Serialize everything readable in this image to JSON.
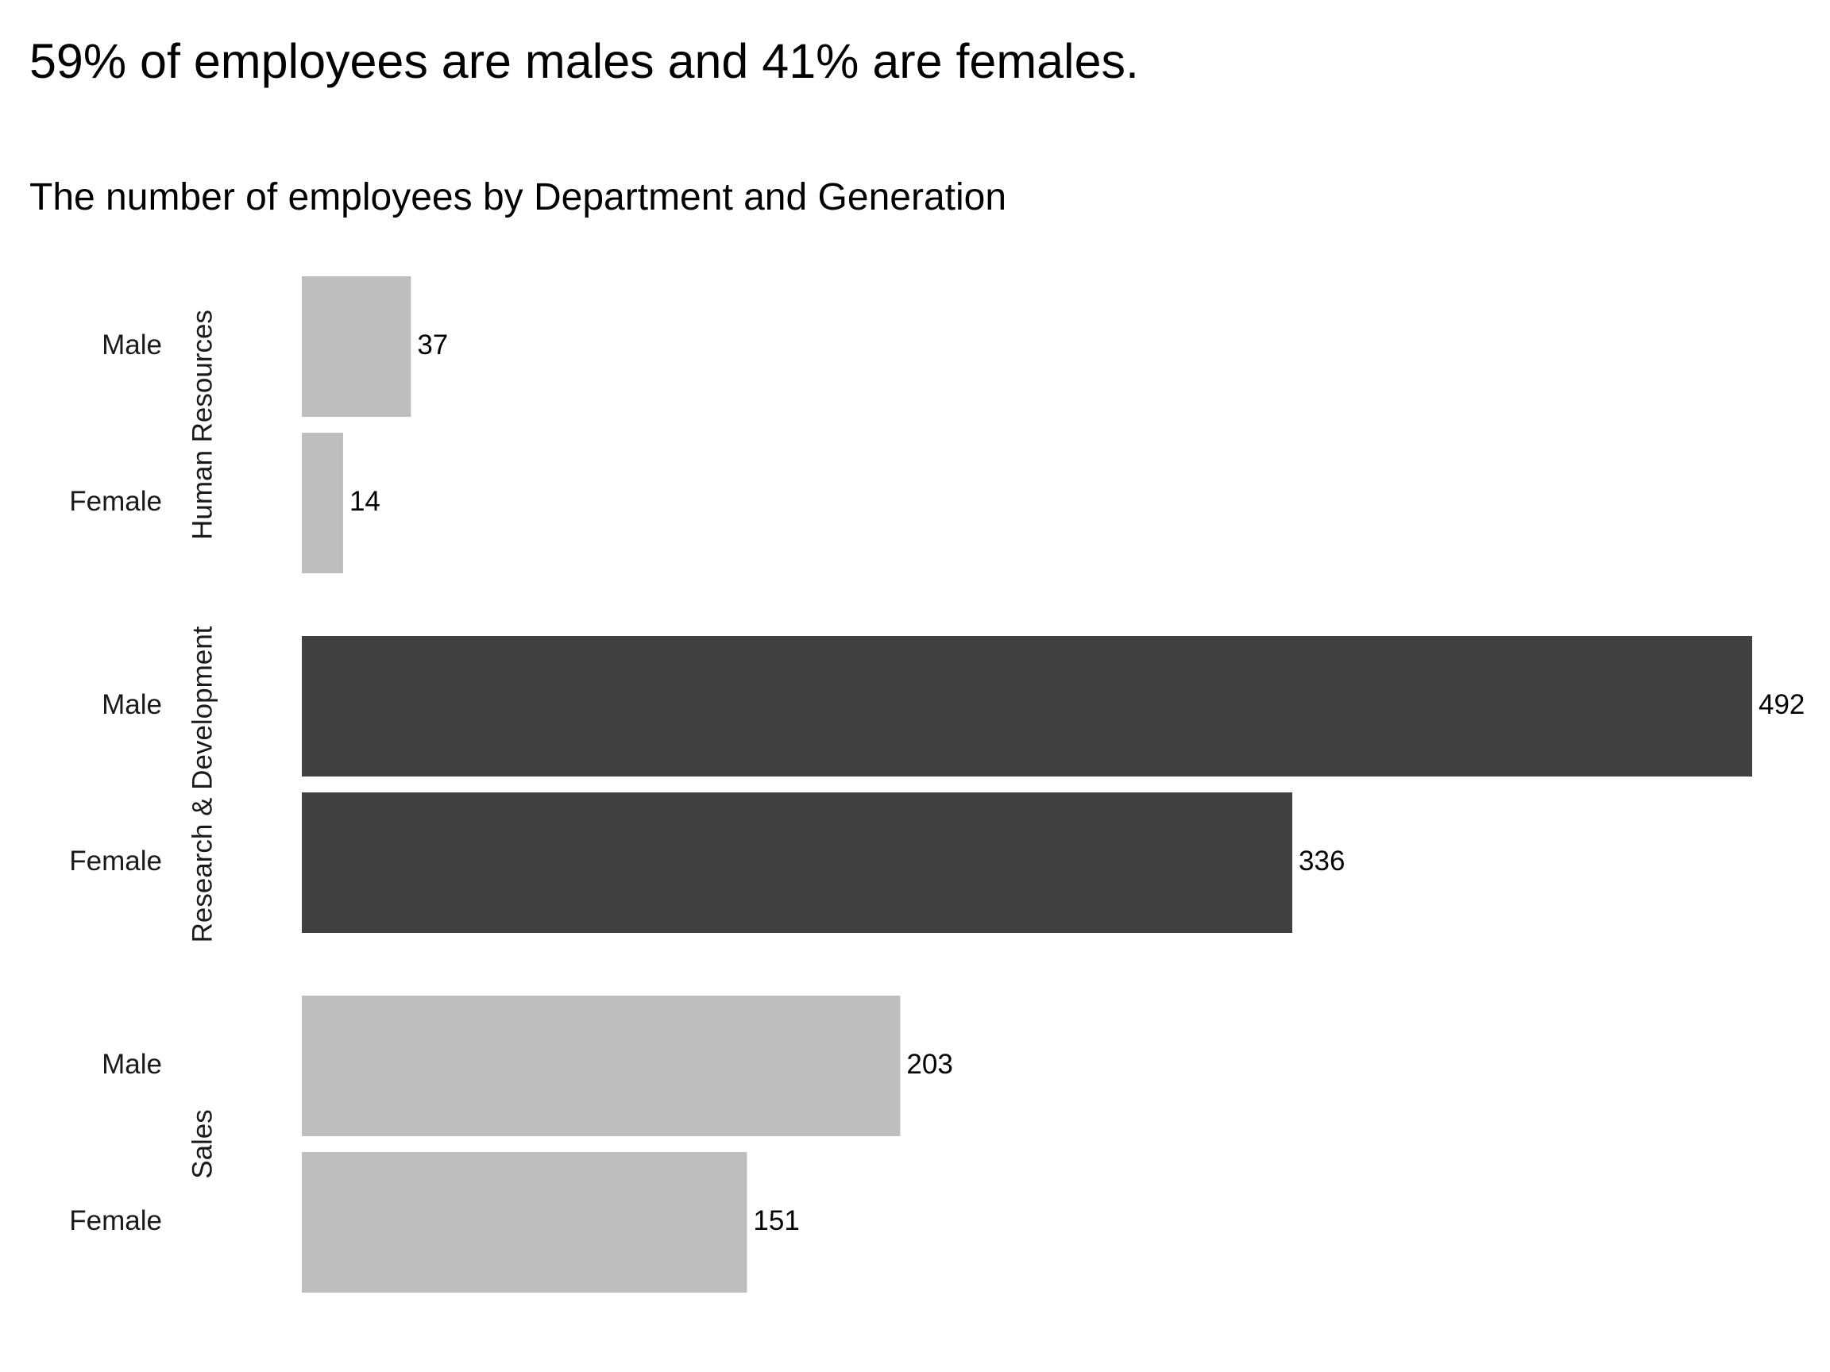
{
  "chart_data": {
    "type": "bar",
    "orientation": "horizontal",
    "title": "59% of employees are males and 41% are females.",
    "subtitle": "The number of employees by Department and Generation",
    "xlabel": "",
    "ylabel": "",
    "xlim": [
      0,
      492
    ],
    "grid": false,
    "legend": "none",
    "groups": [
      {
        "name": "Human Resources",
        "color": "#bebebe",
        "bars": [
          {
            "category": "Male",
            "value": 37
          },
          {
            "category": "Female",
            "value": 14
          }
        ]
      },
      {
        "name": "Research & Development",
        "color": "#414141",
        "bars": [
          {
            "category": "Male",
            "value": 492
          },
          {
            "category": "Female",
            "value": 336
          }
        ]
      },
      {
        "name": "Sales",
        "color": "#bebebe",
        "bars": [
          {
            "category": "Male",
            "value": 203
          },
          {
            "category": "Female",
            "value": 151
          }
        ]
      }
    ]
  }
}
